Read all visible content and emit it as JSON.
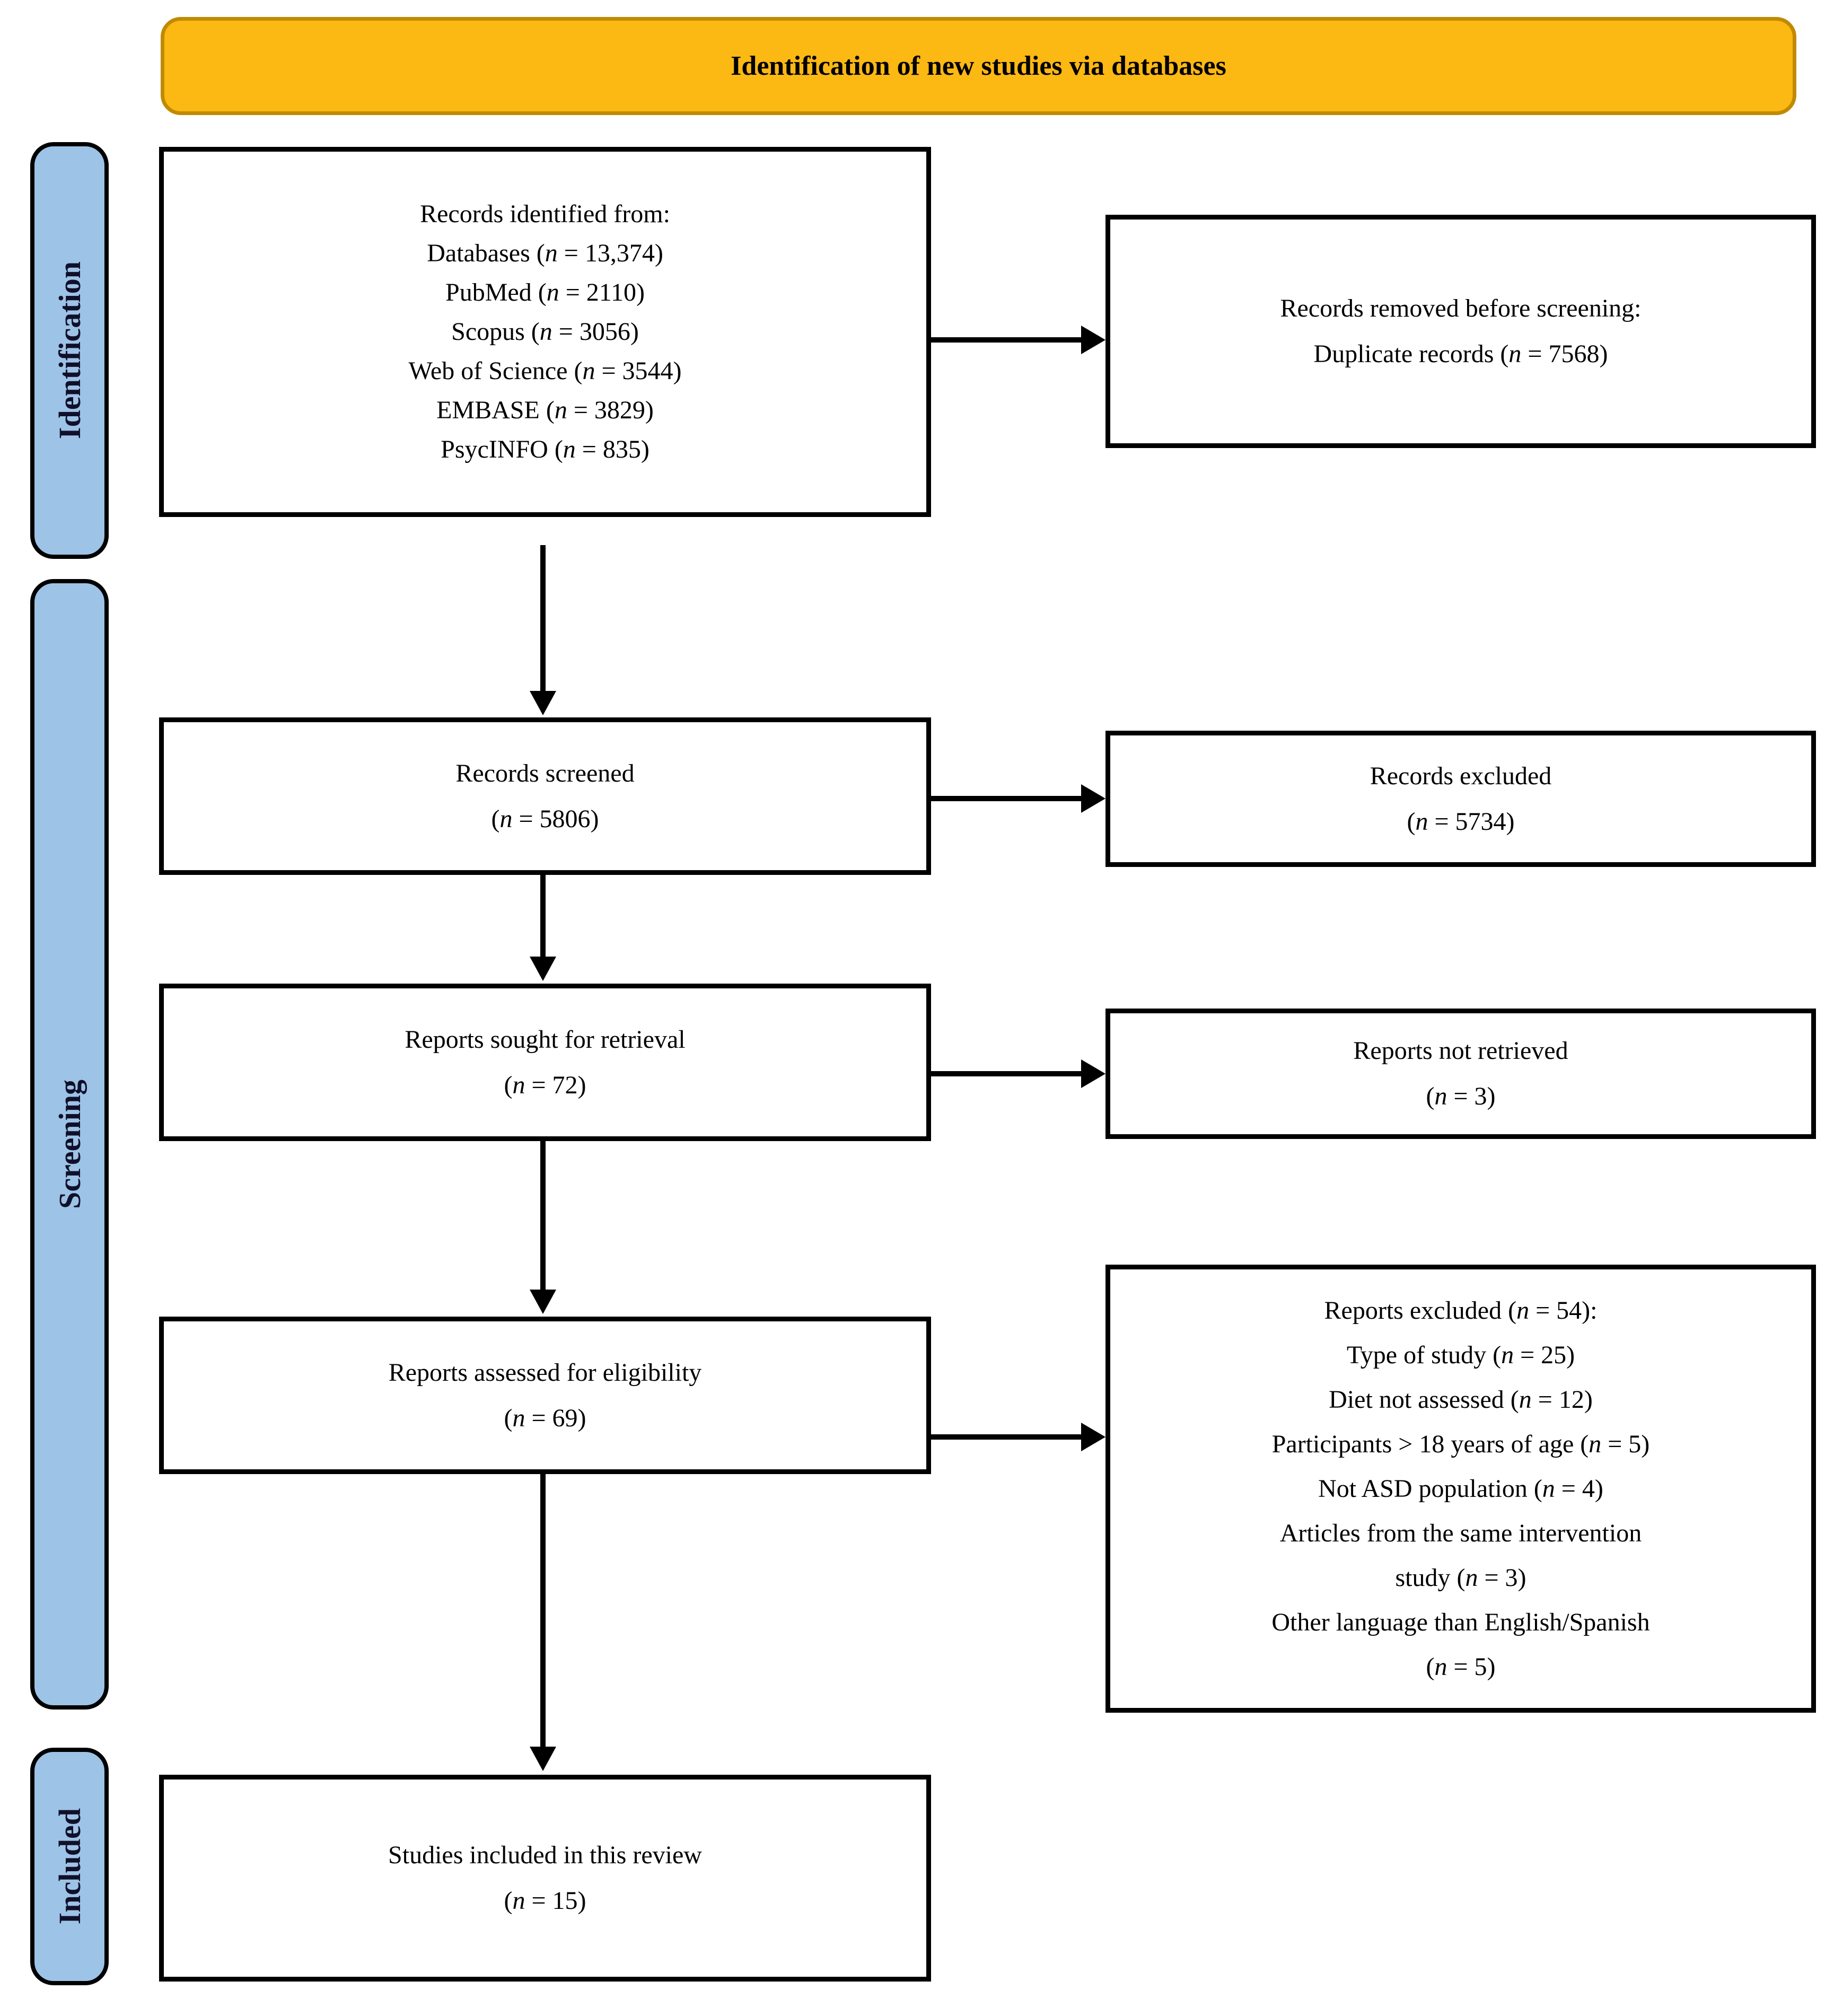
{
  "banner": {
    "title": "Identification of new studies via databases"
  },
  "stages": {
    "identification": {
      "label": "Identification"
    },
    "screening": {
      "label": "Screening"
    },
    "included": {
      "label": "Included"
    }
  },
  "boxes": {
    "records_identified": {
      "lines": [
        "Records identified from:",
        "Databases (n = 13,374)",
        "PubMed (n = 2110)",
        "Scopus (n = 3056)",
        "Web of Science (n = 3544)",
        "EMBASE (n = 3829)",
        "PsycINFO (n = 835)"
      ]
    },
    "records_removed": {
      "lines": [
        "Records removed before screening:",
        "Duplicate records (n = 7568)"
      ]
    },
    "records_screened": {
      "lines": [
        "Records screened",
        "(n = 5806)"
      ]
    },
    "records_excluded": {
      "lines": [
        "Records excluded",
        "(n = 5734)"
      ]
    },
    "reports_sought": {
      "lines": [
        "Reports sought for retrieval",
        "(n = 72)"
      ]
    },
    "reports_not_retrieved": {
      "lines": [
        "Reports not retrieved",
        "(n = 3)"
      ]
    },
    "reports_assessed": {
      "lines": [
        "Reports assessed for eligibility",
        "(n = 69)"
      ]
    },
    "reports_excluded": {
      "lines": [
        "Reports excluded (n = 54):",
        "Type of study (n = 25)",
        "Diet not assessed (n = 12)",
        "Participants > 18 years of age (n = 5)",
        "Not ASD population (n = 4)",
        "Articles from the same intervention",
        "study (n = 3)",
        "Other language than English/Spanish",
        "(n = 5)"
      ]
    },
    "studies_included": {
      "lines": [
        "Studies included in this review",
        "(n = 15)"
      ]
    }
  },
  "colors": {
    "banner_fill": "#FCB813",
    "banner_border": "#C08A00",
    "stage_fill": "#9DC3E6",
    "stage_border": "#000000",
    "box_fill": "#FFFFFF",
    "box_border": "#000000"
  }
}
